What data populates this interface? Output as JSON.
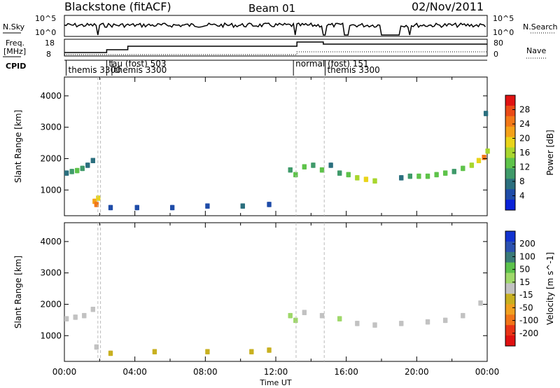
{
  "header": {
    "station": "Blackstone (fitACF)",
    "beam": "Beam 01",
    "date": "02/Nov/2011"
  },
  "top_panels": {
    "nsky": {
      "label": "N.Sky",
      "ticks": [
        "10^5",
        "10^0"
      ],
      "right_ticks": [
        "10^5",
        "10^0"
      ],
      "right_label": "N.Search"
    },
    "freq": {
      "label_line1": "Freq.",
      "label_line2": "[MHz]",
      "ticks": [
        "18",
        "8"
      ],
      "right_ticks": [
        "80",
        "0"
      ],
      "right_label": "Nave"
    },
    "cpid": {
      "label": "CPID",
      "entries": [
        {
          "text": "themis 3300",
          "start_hour": 0.1
        },
        {
          "text": "tau (fost) 503",
          "start_hour": 2.4
        },
        {
          "text": "themis 3300",
          "start_hour": 2.7
        },
        {
          "text": "normal (fost) 151",
          "start_hour": 13.0
        },
        {
          "text": "themis 3300",
          "start_hour": 14.8
        }
      ]
    }
  },
  "chart_data": [
    {
      "type": "heatmap",
      "title": "",
      "quantity": "Power",
      "xlabel": "Time UT",
      "ylabel": "Slant Range [km]",
      "xlim_hours": [
        0,
        24
      ],
      "xticks": [
        "00:00",
        "04:00",
        "08:00",
        "12:00",
        "16:00",
        "20:00",
        "00:00"
      ],
      "ylim": [
        180,
        4600
      ],
      "yticks": [
        1000,
        2000,
        3000,
        4000
      ],
      "colorbar": {
        "label": "Power [dB]",
        "ticks": [
          "28",
          "24",
          "20",
          "16",
          "12",
          "8",
          "4"
        ],
        "colors": [
          "#0a22d8",
          "#1f4ca8",
          "#2b6f7e",
          "#3f9a6a",
          "#5ec34a",
          "#a8d62e",
          "#e9d41a",
          "#f4a21a",
          "#f27818",
          "#ea4a16",
          "#e01212"
        ]
      },
      "series": [
        {
          "points": [
            [
              0.0,
              1500,
              8
            ],
            [
              0.3,
              1550,
              10
            ],
            [
              0.6,
              1580,
              12
            ],
            [
              0.9,
              1650,
              10
            ],
            [
              1.2,
              1750,
              8
            ],
            [
              1.5,
              1900,
              6
            ],
            [
              1.6,
              600,
              22
            ],
            [
              1.7,
              500,
              26
            ],
            [
              1.8,
              700,
              20
            ],
            [
              12.7,
              1600,
              10
            ],
            [
              13.0,
              1450,
              14
            ],
            [
              13.5,
              1700,
              12
            ],
            [
              14.0,
              1750,
              10
            ],
            [
              14.5,
              1600,
              12
            ],
            [
              15.0,
              1750,
              8
            ],
            [
              15.5,
              1500,
              10
            ],
            [
              16.0,
              1450,
              14
            ],
            [
              16.5,
              1350,
              16
            ],
            [
              17.0,
              1300,
              18
            ],
            [
              17.5,
              1250,
              16
            ],
            [
              19.0,
              1350,
              8
            ],
            [
              19.5,
              1400,
              10
            ],
            [
              20.0,
              1400,
              12
            ],
            [
              20.5,
              1400,
              12
            ],
            [
              21.0,
              1450,
              14
            ],
            [
              21.5,
              1500,
              12
            ],
            [
              22.0,
              1550,
              10
            ],
            [
              22.5,
              1650,
              12
            ],
            [
              23.0,
              1750,
              16
            ],
            [
              23.4,
              1900,
              20
            ],
            [
              23.7,
              2000,
              24
            ],
            [
              23.9,
              2200,
              16
            ],
            [
              23.8,
              3400,
              6
            ],
            [
              2.5,
              400,
              4
            ],
            [
              4.0,
              400,
              4
            ],
            [
              6.0,
              400,
              4
            ],
            [
              8.0,
              450,
              4
            ],
            [
              10.0,
              450,
              6
            ],
            [
              11.5,
              500,
              4
            ]
          ]
        }
      ]
    },
    {
      "type": "heatmap",
      "title": "",
      "quantity": "Velocity",
      "xlabel": "Time UT",
      "ylabel": "Slant Range [km]",
      "xlim_hours": [
        0,
        24
      ],
      "xticks": [
        "00:00",
        "04:00",
        "08:00",
        "12:00",
        "16:00",
        "20:00",
        "00:00"
      ],
      "ylim": [
        180,
        4600
      ],
      "yticks": [
        1000,
        2000,
        3000,
        4000
      ],
      "colorbar": {
        "label": "Velocity [m s^-1]",
        "ticks": [
          "200",
          "100",
          "50",
          "15",
          "-15",
          "-50",
          "-100",
          "-200"
        ],
        "colors": [
          "#1233d0",
          "#2c52b0",
          "#3a7a78",
          "#5cc24c",
          "#9fd86a",
          "#c2c2c2",
          "#c8b020",
          "#f0a020",
          "#f07418",
          "#e83416",
          "#e01010"
        ]
      },
      "series": [
        {
          "points": [
            [
              0.0,
              1500,
              0
            ],
            [
              0.5,
              1550,
              0
            ],
            [
              1.0,
              1600,
              0
            ],
            [
              1.5,
              1800,
              0
            ],
            [
              1.7,
              600,
              0
            ],
            [
              12.7,
              1600,
              60
            ],
            [
              13.0,
              1450,
              40
            ],
            [
              13.5,
              1700,
              0
            ],
            [
              14.5,
              1600,
              0
            ],
            [
              15.5,
              1500,
              30
            ],
            [
              16.5,
              1350,
              0
            ],
            [
              17.5,
              1300,
              0
            ],
            [
              19.0,
              1350,
              0
            ],
            [
              20.5,
              1400,
              0
            ],
            [
              21.5,
              1450,
              -10
            ],
            [
              22.5,
              1600,
              0
            ],
            [
              23.5,
              2000,
              0
            ],
            [
              2.5,
              400,
              -40
            ],
            [
              5.0,
              450,
              -60
            ],
            [
              8.0,
              450,
              -60
            ],
            [
              10.5,
              450,
              -60
            ],
            [
              11.5,
              500,
              -50
            ]
          ]
        }
      ]
    }
  ]
}
